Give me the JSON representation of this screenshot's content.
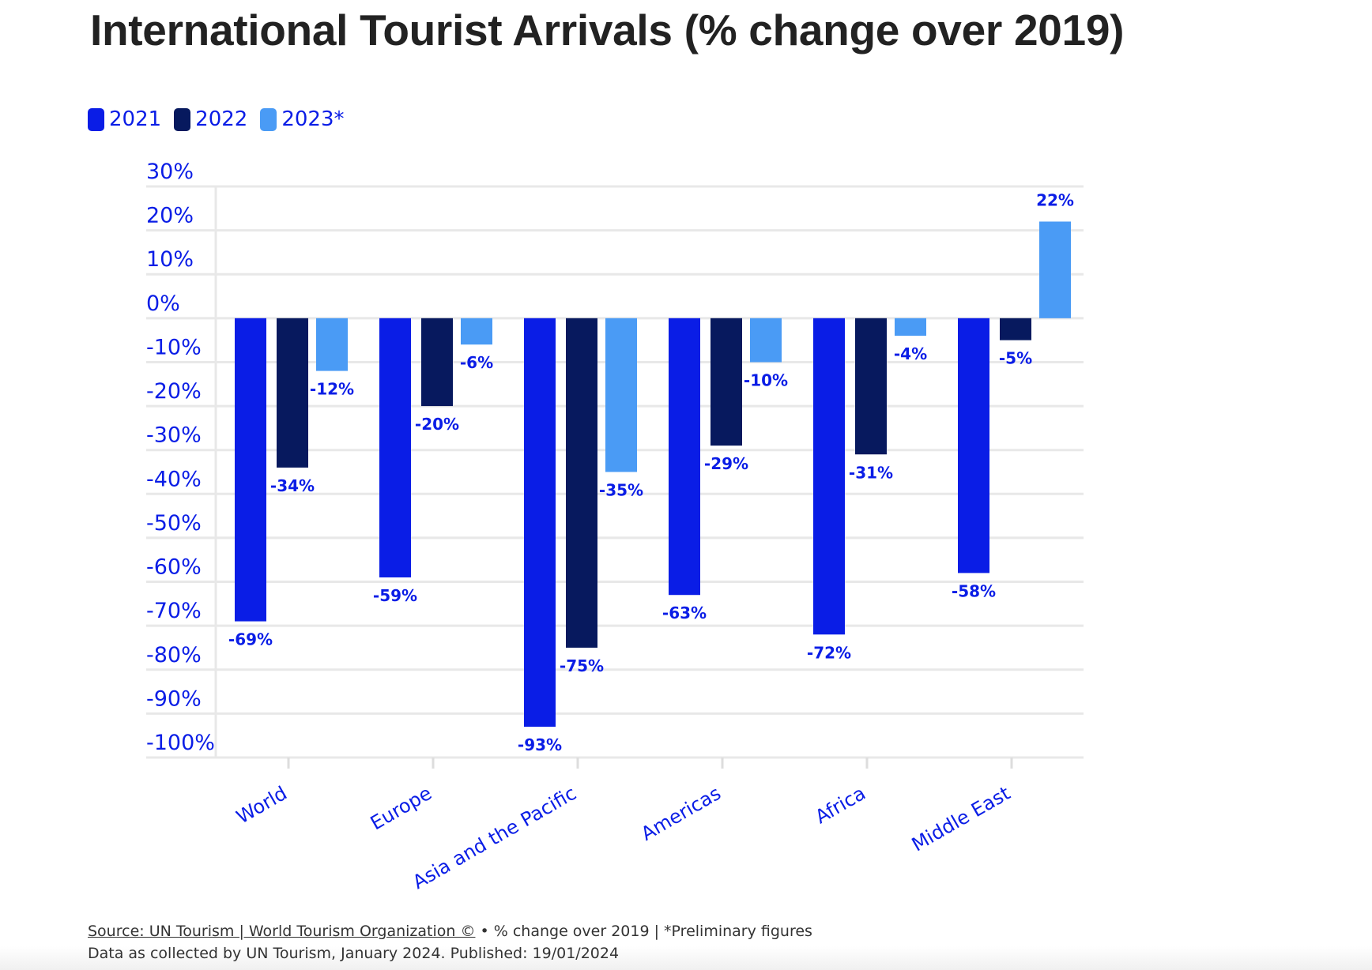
{
  "chart_data": {
    "type": "bar",
    "title": "International Tourist Arrivals (% change over 2019)",
    "categories": [
      "World",
      "Europe",
      "Asia and the Pacific",
      "Americas",
      "Africa",
      "Middle East"
    ],
    "series": [
      {
        "name": "2021",
        "color": "#0a1de6",
        "values": [
          -69,
          -59,
          -93,
          -63,
          -72,
          -58
        ]
      },
      {
        "name": "2022",
        "color": "#07195e",
        "values": [
          -34,
          -20,
          -75,
          -29,
          -31,
          -5
        ]
      },
      {
        "name": "2023*",
        "color": "#4a9bf5",
        "values": [
          -12,
          -6,
          -35,
          -10,
          -4,
          22
        ]
      }
    ],
    "data_labels": [
      [
        "-69%",
        "-59%",
        "-93%",
        "-63%",
        "-72%",
        "-58%"
      ],
      [
        "-34%",
        "-20%",
        "-75%",
        "-29%",
        "-31%",
        "-5%"
      ],
      [
        "-12%",
        "-6%",
        "-35%",
        "-10%",
        "-4%",
        "22%"
      ]
    ],
    "yticks": [
      "30%",
      "20%",
      "10%",
      "0%",
      "-10%",
      "-20%",
      "-30%",
      "-40%",
      "-50%",
      "-60%",
      "-70%",
      "-80%",
      "-90%",
      "-100%"
    ],
    "ylim": [
      -100,
      30
    ],
    "grid": true,
    "legend": "top-left",
    "xlabel": "",
    "ylabel": ""
  },
  "footer": {
    "source_link": "Source: UN Tourism | World Tourism Organization ©",
    "source_rest": " • % change over 2019 | *Preliminary figures",
    "line2": "Data as collected by UN Tourism, January 2024. Published: 19/01/2024"
  }
}
